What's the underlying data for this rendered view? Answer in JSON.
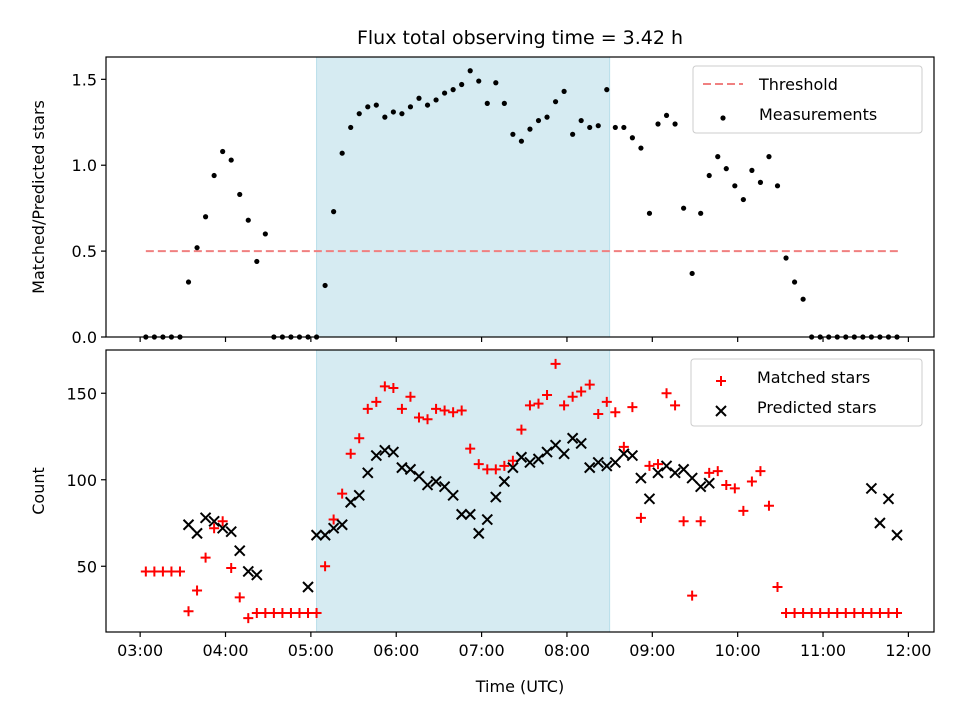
{
  "title": "Flux total observing time = 3.42 h",
  "colors": {
    "threshold": "#f08080",
    "measurements": "#000000",
    "matched": "#ff0000",
    "predicted": "#000000",
    "highlight": "#add8e6"
  },
  "chart_data": [
    {
      "type": "scatter",
      "ylabel": "Matched/Predicted stars",
      "ylim": [
        0,
        1.63
      ],
      "yticks": [
        "0.0",
        "0.5",
        "1.0",
        "1.5"
      ],
      "xlim": [
        "02:36",
        "12:18"
      ],
      "highlight_span": [
        "05:04",
        "08:30"
      ],
      "legend": {
        "placement": "top-right",
        "entries": [
          "Threshold",
          "Measurements"
        ]
      },
      "series": [
        {
          "name": "Threshold",
          "style": "dashed-line",
          "x": [
            "03:04",
            "11:53"
          ],
          "y": [
            0.5,
            0.5
          ]
        },
        {
          "name": "Measurements",
          "style": "dot",
          "x": [
            "03:04",
            "03:10",
            "03:16",
            "03:22",
            "03:28",
            "03:34",
            "03:40",
            "03:46",
            "03:52",
            "03:58",
            "04:04",
            "04:10",
            "04:16",
            "04:22",
            "04:28",
            "04:34",
            "04:40",
            "04:46",
            "04:52",
            "04:58",
            "05:04",
            "05:10",
            "05:16",
            "05:22",
            "05:28",
            "05:34",
            "05:40",
            "05:46",
            "05:52",
            "05:58",
            "06:04",
            "06:10",
            "06:16",
            "06:22",
            "06:28",
            "06:34",
            "06:40",
            "06:46",
            "06:52",
            "06:58",
            "07:04",
            "07:10",
            "07:16",
            "07:22",
            "07:28",
            "07:34",
            "07:40",
            "07:46",
            "07:52",
            "07:58",
            "08:04",
            "08:10",
            "08:16",
            "08:22",
            "08:28",
            "08:34",
            "08:40",
            "08:46",
            "08:52",
            "08:58",
            "09:04",
            "09:10",
            "09:16",
            "09:22",
            "09:28",
            "09:34",
            "09:40",
            "09:46",
            "09:52",
            "09:58",
            "10:04",
            "10:10",
            "10:16",
            "10:22",
            "10:28",
            "10:34",
            "10:40",
            "10:46",
            "10:52",
            "10:58",
            "11:04",
            "11:10",
            "11:16",
            "11:22",
            "11:28",
            "11:34",
            "11:40",
            "11:46",
            "11:52"
          ],
          "y": [
            0.0,
            0.0,
            0.0,
            0.0,
            0.0,
            0.32,
            0.52,
            0.7,
            0.94,
            1.08,
            1.03,
            0.83,
            0.68,
            0.44,
            0.6,
            0.0,
            0.0,
            0.0,
            0.0,
            0.0,
            0.0,
            0.3,
            0.73,
            1.07,
            1.22,
            1.3,
            1.34,
            1.35,
            1.28,
            1.31,
            1.3,
            1.34,
            1.39,
            1.35,
            1.38,
            1.42,
            1.44,
            1.47,
            1.55,
            1.49,
            1.36,
            1.48,
            1.36,
            1.18,
            1.14,
            1.21,
            1.26,
            1.28,
            1.37,
            1.43,
            1.18,
            1.26,
            1.22,
            1.23,
            1.44,
            1.22,
            1.22,
            1.16,
            1.1,
            0.72,
            1.24,
            1.29,
            1.24,
            0.75,
            0.37,
            0.72,
            0.94,
            1.05,
            0.98,
            0.88,
            0.8,
            0.97,
            0.9,
            1.05,
            0.88,
            0.46,
            0.32,
            0.22,
            0.0,
            0.0,
            0.0,
            0.0,
            0.0,
            0.0,
            0.0,
            0.0,
            0.0,
            0.0,
            0.0
          ]
        }
      ]
    },
    {
      "type": "scatter",
      "xlabel": "Time (UTC)",
      "ylabel": "Count",
      "ylim": [
        12,
        175
      ],
      "yticks": [
        "50",
        "100",
        "150"
      ],
      "xlim": [
        "02:36",
        "12:18"
      ],
      "xticks": [
        "03:00",
        "04:00",
        "05:00",
        "06:00",
        "07:00",
        "08:00",
        "09:00",
        "10:00",
        "11:00",
        "12:00"
      ],
      "highlight_span": [
        "05:04",
        "08:30"
      ],
      "legend": {
        "placement": "top-right",
        "entries": [
          "Matched stars",
          "Predicted stars"
        ]
      },
      "series": [
        {
          "name": "Matched stars",
          "marker": "plus",
          "x": [
            "03:04",
            "03:10",
            "03:16",
            "03:22",
            "03:28",
            "03:34",
            "03:40",
            "03:46",
            "03:52",
            "03:58",
            "04:04",
            "04:10",
            "04:16",
            "04:22",
            "04:28",
            "04:34",
            "04:40",
            "04:46",
            "04:52",
            "04:58",
            "05:04",
            "05:10",
            "05:16",
            "05:22",
            "05:28",
            "05:34",
            "05:40",
            "05:46",
            "05:52",
            "05:58",
            "06:04",
            "06:10",
            "06:16",
            "06:22",
            "06:28",
            "06:34",
            "06:40",
            "06:46",
            "06:52",
            "06:58",
            "07:04",
            "07:10",
            "07:16",
            "07:22",
            "07:28",
            "07:34",
            "07:40",
            "07:46",
            "07:52",
            "07:58",
            "08:04",
            "08:10",
            "08:16",
            "08:22",
            "08:28",
            "08:34",
            "08:40",
            "08:46",
            "08:52",
            "08:58",
            "09:04",
            "09:10",
            "09:16",
            "09:22",
            "09:28",
            "09:34",
            "09:40",
            "09:46",
            "09:52",
            "09:58",
            "10:04",
            "10:10",
            "10:16",
            "10:22",
            "10:28",
            "10:34",
            "10:40",
            "10:46",
            "10:52",
            "10:58",
            "11:04",
            "11:10",
            "11:16",
            "11:22",
            "11:28",
            "11:34",
            "11:40",
            "11:46",
            "11:52"
          ],
          "y": [
            47,
            47,
            47,
            47,
            47,
            24,
            36,
            55,
            72,
            76,
            49,
            32,
            20,
            23,
            23,
            23,
            23,
            23,
            23,
            23,
            23,
            50,
            77,
            92,
            115,
            124,
            141,
            145,
            154,
            153,
            141,
            148,
            136,
            135,
            141,
            140,
            139,
            140,
            118,
            109,
            106,
            106,
            108,
            111,
            129,
            143,
            144,
            149,
            167,
            143,
            148,
            151,
            155,
            138,
            145,
            139,
            119,
            142,
            78,
            108,
            109,
            150,
            143,
            76,
            33,
            76,
            104,
            105,
            97,
            95,
            82,
            99,
            105,
            85,
            38,
            23,
            23,
            23,
            23,
            23,
            23,
            23,
            23,
            23,
            23,
            23,
            23,
            23,
            23
          ]
        },
        {
          "name": "Predicted stars",
          "marker": "x",
          "x": [
            "03:34",
            "03:40",
            "03:46",
            "03:52",
            "03:58",
            "04:04",
            "04:10",
            "04:16",
            "04:22",
            "04:58",
            "05:04",
            "05:10",
            "05:16",
            "05:22",
            "05:28",
            "05:34",
            "05:40",
            "05:46",
            "05:52",
            "05:58",
            "06:04",
            "06:10",
            "06:16",
            "06:22",
            "06:28",
            "06:34",
            "06:40",
            "06:46",
            "06:52",
            "06:58",
            "07:04",
            "07:10",
            "07:16",
            "07:22",
            "07:28",
            "07:34",
            "07:40",
            "07:46",
            "07:52",
            "07:58",
            "08:04",
            "08:10",
            "08:16",
            "08:22",
            "08:28",
            "08:34",
            "08:40",
            "08:46",
            "08:52",
            "08:58",
            "09:04",
            "09:10",
            "09:16",
            "09:22",
            "09:28",
            "09:34",
            "09:40",
            "11:34",
            "11:40",
            "11:46",
            "11:52"
          ],
          "y": [
            74,
            69,
            78,
            76,
            72,
            70,
            59,
            47,
            45,
            38,
            68,
            68,
            72,
            74,
            87,
            91,
            104,
            114,
            117,
            116,
            107,
            106,
            102,
            97,
            99,
            96,
            91,
            80,
            80,
            69,
            77,
            90,
            99,
            107,
            113,
            110,
            112,
            116,
            120,
            115,
            124,
            121,
            107,
            110,
            108,
            110,
            115,
            114,
            101,
            89,
            104,
            108,
            104,
            106,
            101,
            96,
            98,
            95,
            75,
            89,
            68
          ]
        }
      ]
    }
  ]
}
